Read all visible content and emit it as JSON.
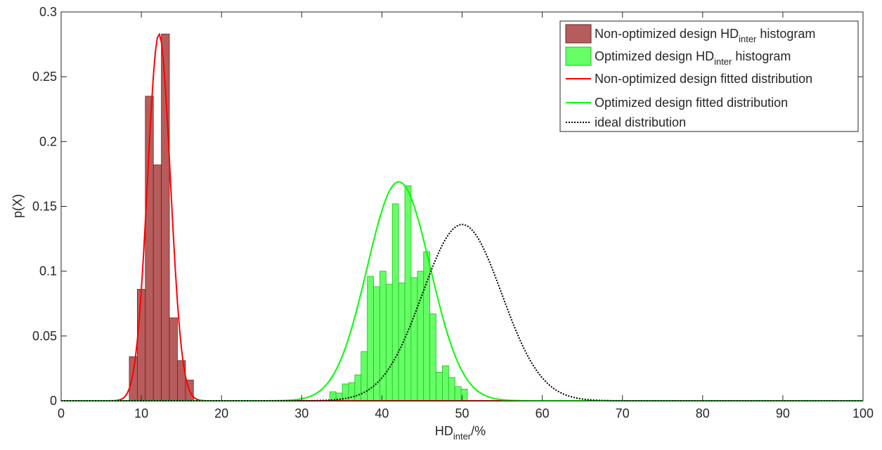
{
  "chart_data": {
    "type": "bar",
    "title": "",
    "xlabel": {
      "main": "HD",
      "sub": "inter",
      "suffix": "/%"
    },
    "ylabel": "p(X)",
    "xlim": [
      0,
      100
    ],
    "ylim": [
      0,
      0.3
    ],
    "xticks": [
      0,
      10,
      20,
      30,
      40,
      50,
      60,
      70,
      80,
      90,
      100
    ],
    "yticks": [
      0,
      0.05,
      0.1,
      0.15,
      0.2,
      0.25,
      0.3
    ],
    "xtick_labels": [
      "0",
      "10",
      "20",
      "30",
      "40",
      "50",
      "60",
      "70",
      "80",
      "90",
      "100"
    ],
    "ytick_labels": [
      "0",
      "0.05",
      "0.1",
      "0.15",
      "0.2",
      "0.25",
      "0.3"
    ],
    "grid": false,
    "legend_position": "top-right",
    "colors": {
      "non_optimized_hist": "#b75c5c",
      "non_optimized_hist_edge": "#6e1f1f",
      "non_optimized_fit": "#ff0000",
      "optimized_hist": "#66ff66",
      "optimized_hist_edge": "#22bb22",
      "optimized_fit": "#00ff00",
      "ideal": "#000000"
    },
    "series": [
      {
        "kind": "histogram",
        "key": "non_optimized_hist",
        "legend": {
          "pre": "Non-optimized design HD",
          "sub": "inter",
          "post": " histogram"
        },
        "bin_width": 1,
        "bins": [
          {
            "x0": 8.5,
            "y": 0.034
          },
          {
            "x0": 9.5,
            "y": 0.086
          },
          {
            "x0": 10.5,
            "y": 0.235
          },
          {
            "x0": 11.5,
            "y": 0.182
          },
          {
            "x0": 12.5,
            "y": 0.283
          },
          {
            "x0": 13.5,
            "y": 0.064
          },
          {
            "x0": 14.5,
            "y": 0.031
          },
          {
            "x0": 15.5,
            "y": 0.016
          }
        ]
      },
      {
        "kind": "histogram",
        "key": "optimized_hist",
        "legend": {
          "pre": "Optimized design HD",
          "sub": "inter",
          "post": " histogram"
        },
        "bin_width": 0.78,
        "bins": [
          {
            "x0": 33.5,
            "y": 0.007
          },
          {
            "x0": 34.28,
            "y": 0.006
          },
          {
            "x0": 35.06,
            "y": 0.013
          },
          {
            "x0": 35.84,
            "y": 0.014
          },
          {
            "x0": 36.62,
            "y": 0.02
          },
          {
            "x0": 37.4,
            "y": 0.038
          },
          {
            "x0": 38.18,
            "y": 0.096
          },
          {
            "x0": 38.96,
            "y": 0.088
          },
          {
            "x0": 39.74,
            "y": 0.1
          },
          {
            "x0": 40.52,
            "y": 0.09
          },
          {
            "x0": 41.3,
            "y": 0.152
          },
          {
            "x0": 42.08,
            "y": 0.091
          },
          {
            "x0": 42.86,
            "y": 0.166
          },
          {
            "x0": 43.64,
            "y": 0.095
          },
          {
            "x0": 44.42,
            "y": 0.1
          },
          {
            "x0": 45.2,
            "y": 0.115
          },
          {
            "x0": 45.98,
            "y": 0.067
          },
          {
            "x0": 46.76,
            "y": 0.022
          },
          {
            "x0": 47.54,
            "y": 0.027
          },
          {
            "x0": 48.32,
            "y": 0.018
          },
          {
            "x0": 49.1,
            "y": 0.011
          },
          {
            "x0": 49.88,
            "y": 0.009
          }
        ]
      },
      {
        "kind": "normal_curve",
        "key": "non_optimized_fit",
        "legend": {
          "pre": "Non-optimized design fitted distribution",
          "sub": "",
          "post": ""
        },
        "mean": 12.2,
        "sigma": 1.42,
        "peak": 0.283,
        "dash": false
      },
      {
        "kind": "normal_curve",
        "key": "optimized_fit",
        "legend": {
          "pre": "Optimized design fitted distribution",
          "sub": "",
          "post": ""
        },
        "mean": 42.1,
        "sigma": 3.95,
        "peak": 0.169,
        "dash": false
      },
      {
        "kind": "normal_curve",
        "key": "ideal",
        "legend": {
          "pre": "ideal distribution",
          "sub": "",
          "post": ""
        },
        "mean": 50,
        "sigma": 4.95,
        "peak": 0.136,
        "dash": true
      }
    ]
  }
}
